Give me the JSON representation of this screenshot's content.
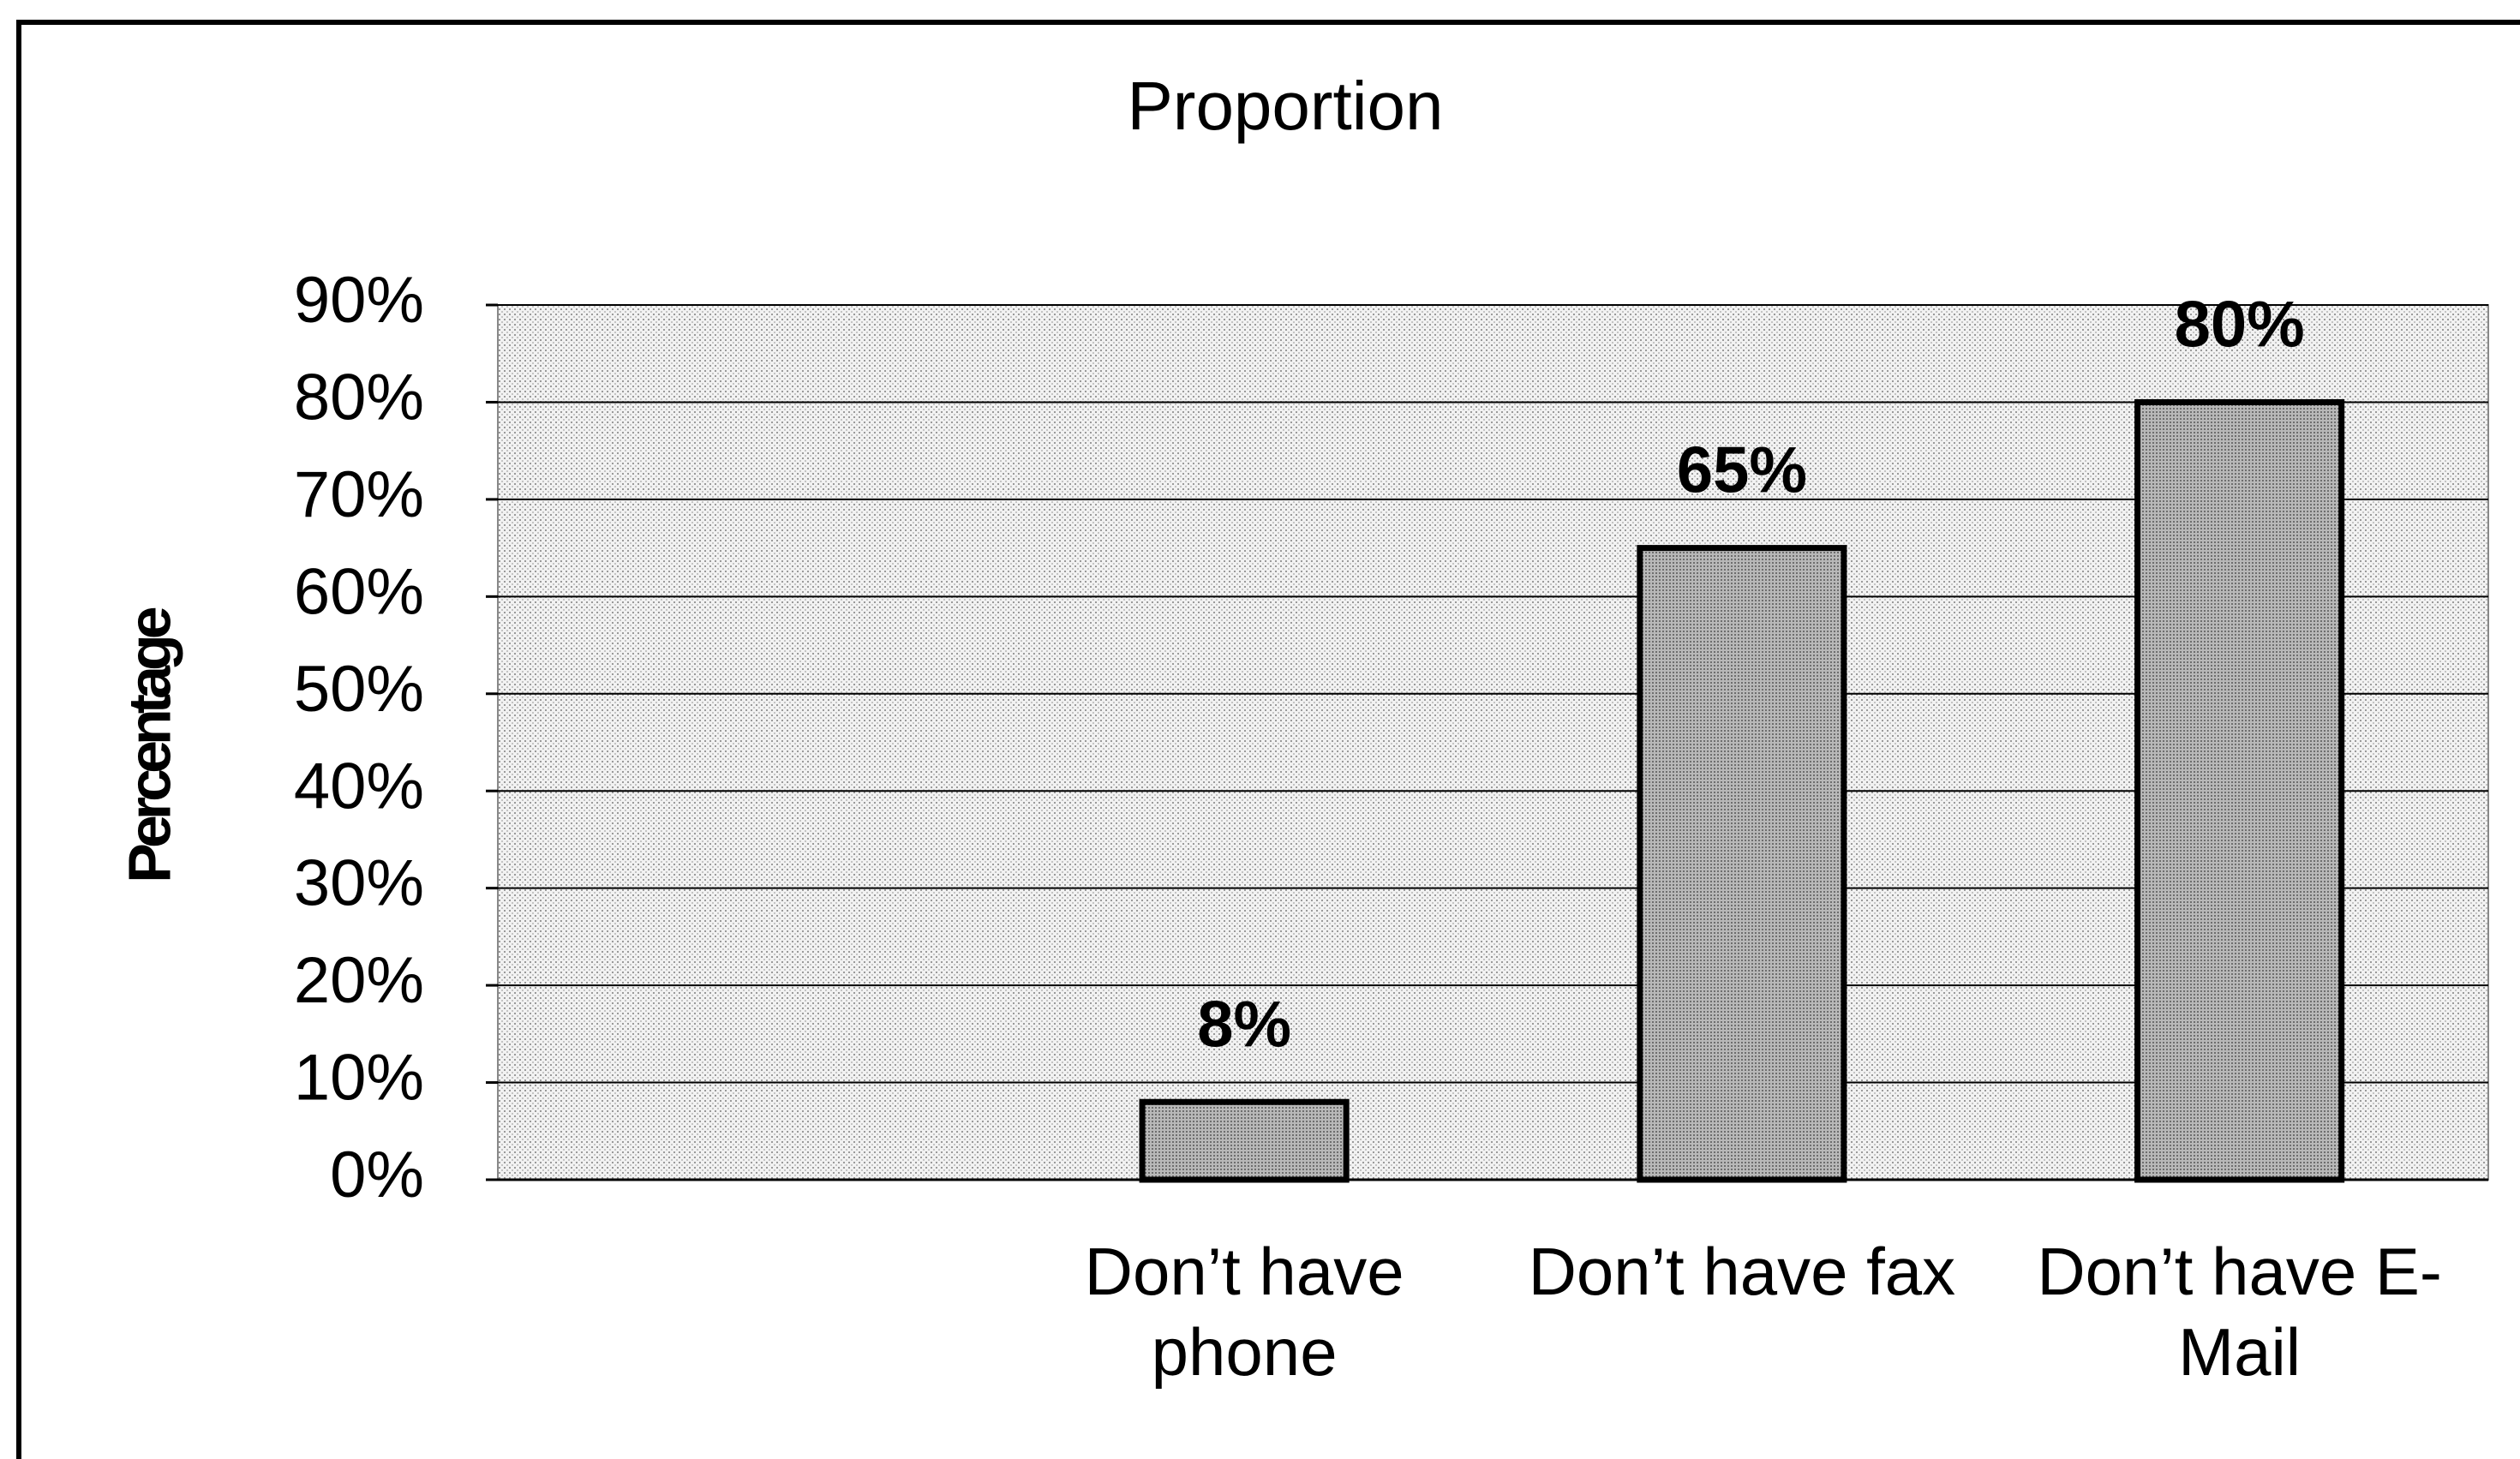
{
  "chart_data": {
    "type": "bar",
    "title": "Proportion",
    "y_label": "Percentage",
    "categories": [
      null,
      "Don’t have phone",
      "Don’t have fax",
      "Don’t have E-Mail"
    ],
    "values": [
      null,
      8,
      65,
      80
    ],
    "value_labels": [
      null,
      "8%",
      "65%",
      "80%"
    ],
    "color": "#a9a9a9",
    "ylim": [
      0,
      90
    ],
    "yticks": [
      {
        "value": 0,
        "label": "0%"
      },
      {
        "value": 10,
        "label": "10%"
      },
      {
        "value": 20,
        "label": "20%"
      },
      {
        "value": 30,
        "label": "30%"
      },
      {
        "value": 40,
        "label": "40%"
      },
      {
        "value": 50,
        "label": "50%"
      },
      {
        "value": 60,
        "label": "60%"
      },
      {
        "value": 70,
        "label": "70%"
      },
      {
        "value": 80,
        "label": "80%"
      },
      {
        "value": 90,
        "label": "90%"
      }
    ],
    "grid": true
  }
}
